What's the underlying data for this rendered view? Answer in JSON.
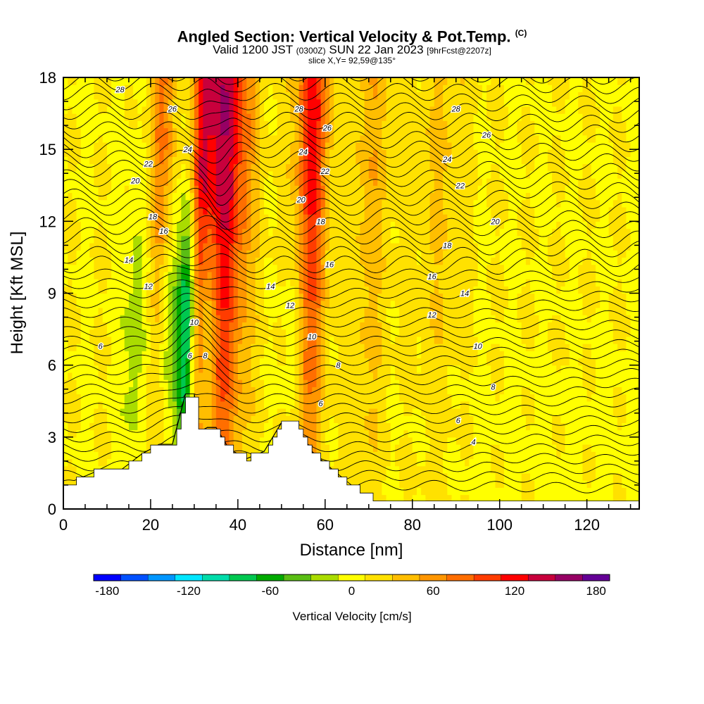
{
  "title": {
    "main": "Angled Section: Vertical Velocity & Pot.Temp.",
    "main_suffix": "(C)",
    "valid_prefix": "Valid 1200 JST",
    "valid_zulu": "(0300Z)",
    "valid_date": "SUN 22 Jan 2023",
    "forecast": "[9hrFcst@2207z]",
    "slice": "slice X,Y= 92,59@135°"
  },
  "chart_data": {
    "type": "heatmap",
    "xlabel": "Distance [nm]",
    "ylabel": "Height [Kft MSL]",
    "xlim": [
      0,
      132
    ],
    "ylim": [
      0,
      18
    ],
    "x_ticks": [
      "0",
      "20",
      "40",
      "60",
      "80",
      "100",
      "120"
    ],
    "y_ticks": [
      "0",
      "3",
      "6",
      "9",
      "12",
      "15",
      "18"
    ],
    "colorbar": {
      "label": "Vertical Velocity [cm/s]",
      "tick_labels": [
        "-180",
        "-120",
        "-60",
        "0",
        "60",
        "120",
        "180"
      ],
      "min": -190,
      "max": 190,
      "colors": [
        "#0000ff",
        "#0050ff",
        "#0096ff",
        "#00e6ff",
        "#00dcaa",
        "#00c850",
        "#00aa00",
        "#5abe14",
        "#aadc00",
        "#ffff00",
        "#ffe100",
        "#ffbe00",
        "#ff9600",
        "#ff6e00",
        "#ff3c00",
        "#ff0000",
        "#c8003c",
        "#960064",
        "#640096"
      ]
    },
    "terrain": [
      [
        0,
        1
      ],
      [
        8,
        1.6
      ],
      [
        13,
        1.6
      ],
      [
        18,
        2.3
      ],
      [
        22,
        2.7
      ],
      [
        25,
        2.7
      ],
      [
        28,
        4.8
      ],
      [
        30,
        4.8
      ],
      [
        31,
        3.2
      ],
      [
        33,
        3.4
      ],
      [
        35,
        3.4
      ],
      [
        38,
        2.5
      ],
      [
        42,
        2.1
      ],
      [
        46,
        2.4
      ],
      [
        50,
        3.6
      ],
      [
        53,
        3.6
      ],
      [
        57,
        2.4
      ],
      [
        60,
        1.9
      ],
      [
        64,
        1.3
      ],
      [
        68,
        0.7
      ],
      [
        72,
        0.3
      ],
      [
        132,
        0.3
      ]
    ],
    "updrafts": [
      {
        "x": 36,
        "w": 6,
        "peak": 140
      },
      {
        "x": 56,
        "w": 4,
        "peak": 110
      },
      {
        "x": 22,
        "w": 3.5,
        "peak": 70
      },
      {
        "x": 31,
        "w": 2.5,
        "peak": 75
      },
      {
        "x": 70,
        "w": 5,
        "peak": 35
      },
      {
        "x": 86,
        "w": 6,
        "peak": 25
      }
    ],
    "downdrafts": [
      {
        "x": 28.5,
        "w": 2,
        "peak": -130
      },
      {
        "x": 24,
        "w": 3,
        "peak": -60
      },
      {
        "x": 17,
        "w": 3,
        "peak": -40
      },
      {
        "x": 33,
        "w": 2.5,
        "peak": -70
      },
      {
        "x": 53,
        "w": 2.5,
        "peak": -45
      }
    ],
    "contour_levels": [
      "4",
      "6",
      "8",
      "10",
      "12",
      "14",
      "16",
      "18",
      "20",
      "22",
      "24",
      "26",
      "28"
    ],
    "contour_labels": [
      {
        "text": "28",
        "x": 13,
        "y": 17.5
      },
      {
        "text": "26",
        "x": 25,
        "y": 16.7
      },
      {
        "text": "24",
        "x": 28.5,
        "y": 15.0
      },
      {
        "text": "22",
        "x": 19.5,
        "y": 14.4
      },
      {
        "text": "20",
        "x": 16.5,
        "y": 13.7
      },
      {
        "text": "18",
        "x": 20.5,
        "y": 12.2
      },
      {
        "text": "16",
        "x": 23,
        "y": 11.6
      },
      {
        "text": "14",
        "x": 15,
        "y": 10.4
      },
      {
        "text": "12",
        "x": 19.5,
        "y": 9.3
      },
      {
        "text": "10",
        "x": 30,
        "y": 7.8
      },
      {
        "text": "8",
        "x": 32.5,
        "y": 6.4
      },
      {
        "text": "6",
        "x": 29,
        "y": 6.4
      },
      {
        "text": "6",
        "x": 8.5,
        "y": 6.8
      },
      {
        "text": "28",
        "x": 54,
        "y": 16.7
      },
      {
        "text": "26",
        "x": 60.5,
        "y": 15.9
      },
      {
        "text": "24",
        "x": 55,
        "y": 14.9
      },
      {
        "text": "22",
        "x": 60,
        "y": 14.1
      },
      {
        "text": "20",
        "x": 54.5,
        "y": 12.9
      },
      {
        "text": "18",
        "x": 59,
        "y": 12.0
      },
      {
        "text": "16",
        "x": 61,
        "y": 10.2
      },
      {
        "text": "14",
        "x": 47.5,
        "y": 9.3
      },
      {
        "text": "12",
        "x": 52,
        "y": 8.5
      },
      {
        "text": "10",
        "x": 57,
        "y": 7.2
      },
      {
        "text": "8",
        "x": 63,
        "y": 6.0
      },
      {
        "text": "6",
        "x": 59,
        "y": 4.4
      },
      {
        "text": "28",
        "x": 90,
        "y": 16.7
      },
      {
        "text": "26",
        "x": 97,
        "y": 15.6
      },
      {
        "text": "24",
        "x": 88,
        "y": 14.6
      },
      {
        "text": "22",
        "x": 91,
        "y": 13.5
      },
      {
        "text": "20",
        "x": 99,
        "y": 12.0
      },
      {
        "text": "18",
        "x": 88,
        "y": 11.0
      },
      {
        "text": "16",
        "x": 84.5,
        "y": 9.7
      },
      {
        "text": "14",
        "x": 92,
        "y": 9.0
      },
      {
        "text": "12",
        "x": 84.5,
        "y": 8.1
      },
      {
        "text": "10",
        "x": 95,
        "y": 6.8
      },
      {
        "text": "8",
        "x": 98.5,
        "y": 5.1
      },
      {
        "text": "6",
        "x": 90.5,
        "y": 3.7
      },
      {
        "text": "4",
        "x": 94,
        "y": 2.8
      }
    ]
  }
}
